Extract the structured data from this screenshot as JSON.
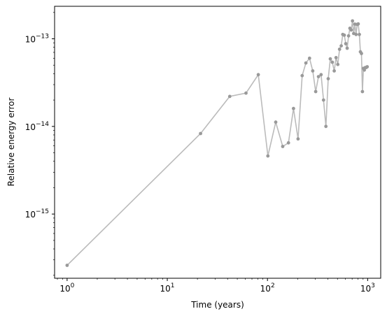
{
  "chart_data": {
    "type": "line",
    "title": "",
    "xlabel": "Time (years)",
    "ylabel": "Relative energy error",
    "xscale": "log",
    "yscale": "log",
    "xlim": [
      0.75,
      1350
    ],
    "ylim": [
      1.85e-16,
      2.35e-13
    ],
    "grid": false,
    "line_color": "#bbbbbb",
    "marker_color": "#999999",
    "x_ticks": [
      {
        "value": 1,
        "base": "10",
        "exp": "0"
      },
      {
        "value": 10,
        "base": "10",
        "exp": "1"
      },
      {
        "value": 100,
        "base": "10",
        "exp": "2"
      },
      {
        "value": 1000,
        "base": "10",
        "exp": "3"
      }
    ],
    "y_ticks": [
      {
        "value": 1e-15,
        "base": "10",
        "exp": "−15"
      },
      {
        "value": 1e-14,
        "base": "10",
        "exp": "−14"
      },
      {
        "value": 1e-13,
        "base": "10",
        "exp": "−13"
      }
    ],
    "series": [
      {
        "x": [
          1,
          21.5,
          42,
          61,
          81,
          101,
          121,
          142,
          162,
          182,
          202,
          222,
          242,
          263,
          283,
          303,
          323,
          343,
          363,
          383,
          404,
          424,
          444,
          464,
          484,
          504,
          524,
          545,
          565,
          585,
          605,
          625,
          645,
          665,
          686,
          706,
          726,
          746,
          766,
          786,
          806,
          827,
          847,
          867,
          887,
          907,
          927,
          947,
          967,
          990
        ],
        "y": [
          2.6e-16,
          8.3e-15,
          2.2e-14,
          2.4e-14,
          3.9e-14,
          4.6e-15,
          1.12e-14,
          5.9e-15,
          6.5e-15,
          1.6e-14,
          7.2e-15,
          3.8e-14,
          5.3e-14,
          6e-14,
          4.3e-14,
          2.5e-14,
          3.7e-14,
          3.9e-14,
          2e-14,
          1e-14,
          3.5e-14,
          5.9e-14,
          5.4e-14,
          4.3e-14,
          6.1e-14,
          5.1e-14,
          7.6e-14,
          8.3e-14,
          1.12e-13,
          1.1e-13,
          8.8e-14,
          7.8e-14,
          1.08e-13,
          1.32e-13,
          1.26e-13,
          1.6e-13,
          1.15e-13,
          1.47e-13,
          1.12e-13,
          1.46e-13,
          1.48e-13,
          1.12e-13,
          7.1e-14,
          6.8e-14,
          2.5e-14,
          4.6e-14,
          4.4e-14,
          4.7e-14,
          4.7e-14,
          4.8e-14
        ]
      }
    ]
  }
}
